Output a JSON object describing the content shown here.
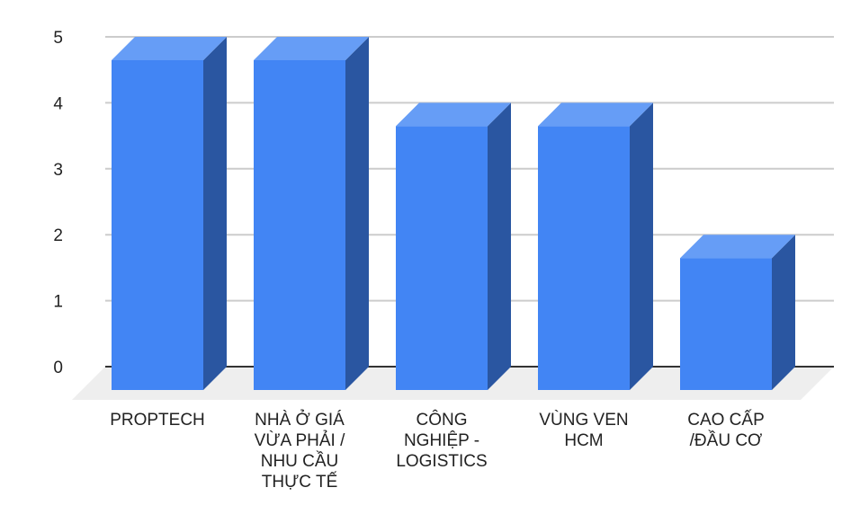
{
  "chart_data": {
    "type": "bar",
    "style": "3d-column",
    "title": "",
    "xlabel": "",
    "ylabel": "",
    "categories": [
      "PROPTECH",
      "NHÀ Ở GIÁ VỪA PHẢI / NHU CẦU THỰC TẾ",
      "CÔNG NGHIỆP - LOGISTICS",
      "VÙNG VEN HCM",
      "CAO CẤP /ĐẦU CƠ"
    ],
    "category_lines": [
      [
        "PROPTECH"
      ],
      [
        "NHÀ Ở GIÁ",
        "VỪA PHẢI /",
        "NHU CẦU",
        "THỰC TẾ"
      ],
      [
        "CÔNG",
        "NGHIỆP -",
        "LOGISTICS"
      ],
      [
        "VÙNG VEN",
        "HCM"
      ],
      [
        "CAO CẤP",
        "/ĐẦU CƠ"
      ]
    ],
    "values": [
      5,
      5,
      4,
      4,
      2
    ],
    "ylim": [
      0,
      5
    ],
    "yticks": [
      "0",
      "1",
      "2",
      "3",
      "4",
      "5"
    ],
    "grid": true,
    "legend": null,
    "colors": {
      "front": "#4285f4",
      "top": "#669df6",
      "side": "#2a56a1",
      "floor": "#eeeeee",
      "grid": "#cccccc",
      "baseline": "#333333"
    }
  }
}
